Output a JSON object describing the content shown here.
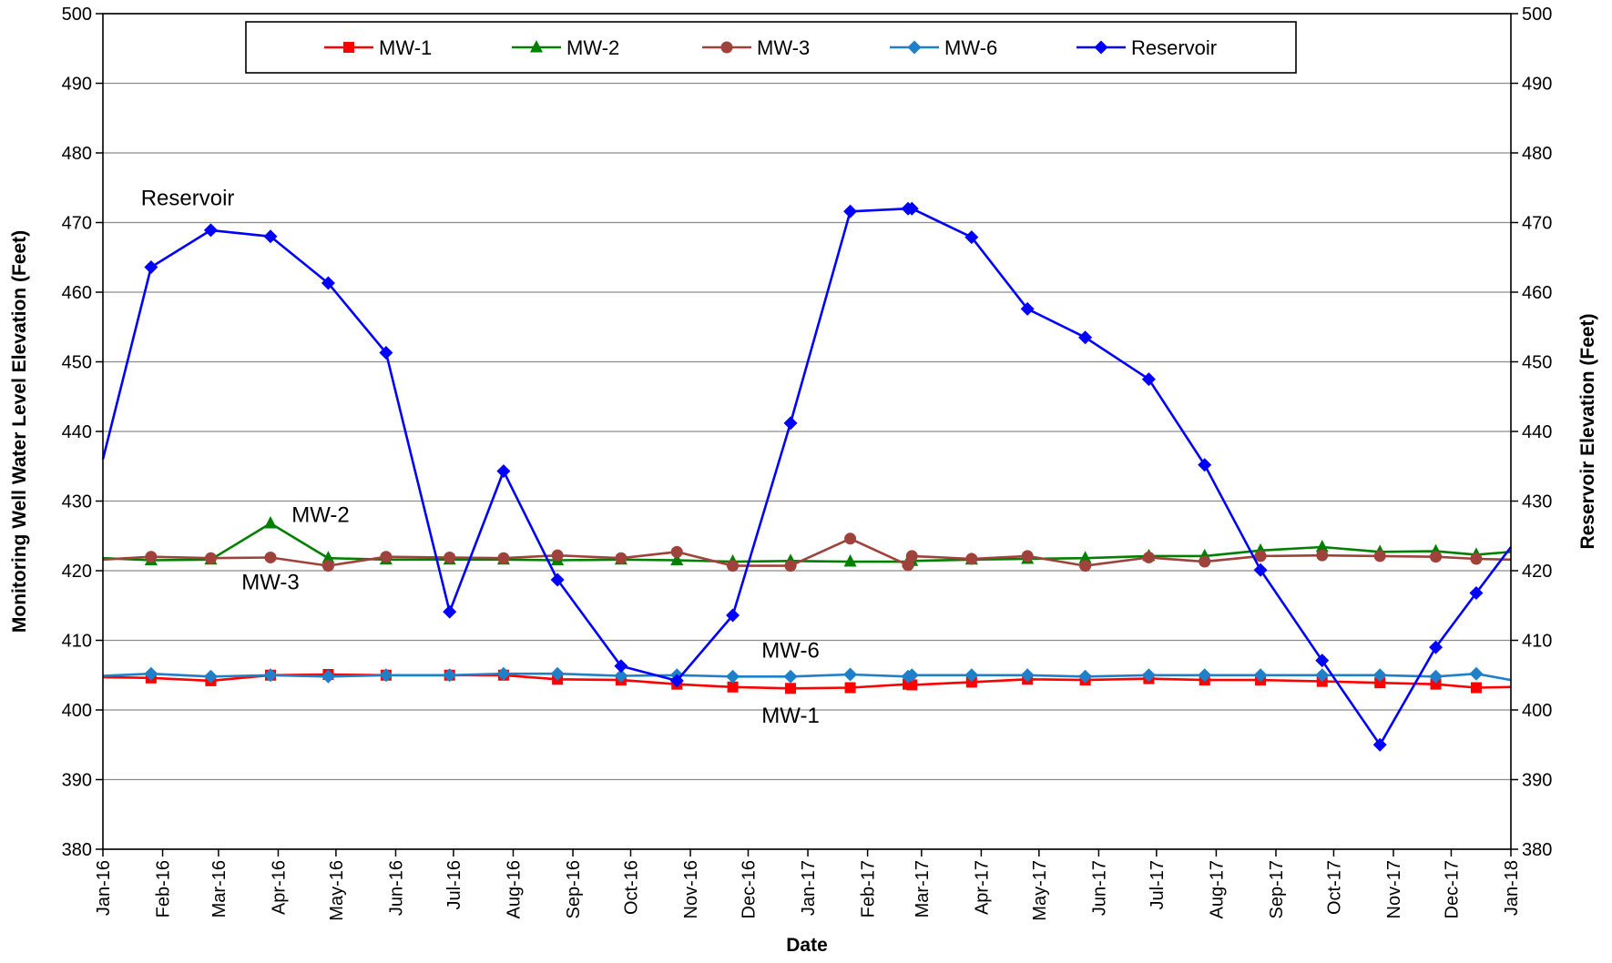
{
  "chart_data": {
    "type": "line",
    "xlabel": "Date",
    "ylabel_left": "Monitoring Well Water Level Elevation (Feet)",
    "ylabel_right": "Reservoir Elevation (Feet)",
    "ylim": [
      380,
      500
    ],
    "y_ticks": [
      "500",
      "490",
      "480",
      "470",
      "460",
      "450",
      "440",
      "430",
      "420",
      "410",
      "400",
      "390",
      "380"
    ],
    "y_tick_values": [
      500,
      490,
      480,
      470,
      460,
      450,
      440,
      430,
      420,
      410,
      400,
      390,
      380
    ],
    "x_range": [
      "2016-01-01",
      "2018-01-01"
    ],
    "x_tick_dates": [
      "2016-01-01",
      "2016-02-01",
      "2016-03-01",
      "2016-04-01",
      "2016-05-01",
      "2016-06-01",
      "2016-07-01",
      "2016-08-01",
      "2016-09-01",
      "2016-10-01",
      "2016-11-01",
      "2016-12-01",
      "2017-01-01",
      "2017-02-01",
      "2017-03-01",
      "2017-04-01",
      "2017-05-01",
      "2017-06-01",
      "2017-07-01",
      "2017-08-01",
      "2017-09-01",
      "2017-10-01",
      "2017-11-01",
      "2017-12-01",
      "2018-01-01"
    ],
    "x_tick_labels": [
      "Jan-16",
      "Feb-16",
      "Mar-16",
      "Apr-16",
      "May-16",
      "Jun-16",
      "Jul-16",
      "Aug-16",
      "Sep-16",
      "Oct-16",
      "Nov-16",
      "Dec-16",
      "Jan-17",
      "Feb-17",
      "Mar-17",
      "Apr-17",
      "May-17",
      "Jun-17",
      "Jul-17",
      "Aug-17",
      "Sep-17",
      "Oct-17",
      "Nov-17",
      "Dec-17",
      "Jan-18"
    ],
    "grid": "horizontal",
    "legend_position": "top",
    "series": [
      {
        "name": "MW-1",
        "color": "#ff0000",
        "marker": "square",
        "points": [
          [
            "2016-01-01",
            404.7
          ],
          [
            "2016-01-26",
            404.6
          ],
          [
            "2016-02-26",
            404.2
          ],
          [
            "2016-03-28",
            405.0
          ],
          [
            "2016-04-27",
            405.1
          ],
          [
            "2016-05-27",
            405.0
          ],
          [
            "2016-06-29",
            405.0
          ],
          [
            "2016-07-27",
            405.0
          ],
          [
            "2016-08-24",
            404.4
          ],
          [
            "2016-09-26",
            404.3
          ],
          [
            "2016-10-25",
            403.7
          ],
          [
            "2016-11-23",
            403.3
          ],
          [
            "2016-12-23",
            403.1
          ],
          [
            "2017-01-23",
            403.2
          ],
          [
            "2017-02-22",
            403.7
          ],
          [
            "2017-02-24",
            403.6
          ],
          [
            "2017-03-27",
            404.0
          ],
          [
            "2017-04-25",
            404.4
          ],
          [
            "2017-05-25",
            404.3
          ],
          [
            "2017-06-27",
            404.5
          ],
          [
            "2017-07-26",
            404.3
          ],
          [
            "2017-08-24",
            404.3
          ],
          [
            "2017-09-25",
            404.1
          ],
          [
            "2017-10-25",
            403.9
          ],
          [
            "2017-11-23",
            403.7
          ],
          [
            "2017-12-14",
            403.2
          ],
          [
            "2018-01-01",
            403.3
          ]
        ]
      },
      {
        "name": "MW-2",
        "color": "#008000",
        "marker": "triangle",
        "points": [
          [
            "2016-01-01",
            421.8
          ],
          [
            "2016-01-26",
            421.5
          ],
          [
            "2016-02-26",
            421.6
          ],
          [
            "2016-03-28",
            426.8
          ],
          [
            "2016-04-27",
            421.8
          ],
          [
            "2016-05-27",
            421.6
          ],
          [
            "2016-06-29",
            421.6
          ],
          [
            "2016-07-27",
            421.6
          ],
          [
            "2016-08-24",
            421.5
          ],
          [
            "2016-09-26",
            421.6
          ],
          [
            "2016-10-25",
            421.5
          ],
          [
            "2016-11-23",
            421.3
          ],
          [
            "2016-12-23",
            421.4
          ],
          [
            "2017-01-23",
            421.3
          ],
          [
            "2017-02-22",
            421.3
          ],
          [
            "2017-02-24",
            421.4
          ],
          [
            "2017-03-27",
            421.6
          ],
          [
            "2017-04-25",
            421.7
          ],
          [
            "2017-05-25",
            421.8
          ],
          [
            "2017-06-27",
            422.1
          ],
          [
            "2017-07-26",
            422.1
          ],
          [
            "2017-08-24",
            422.9
          ],
          [
            "2017-09-25",
            423.4
          ],
          [
            "2017-10-25",
            422.7
          ],
          [
            "2017-11-23",
            422.8
          ],
          [
            "2017-12-14",
            422.3
          ],
          [
            "2018-01-01",
            422.7
          ]
        ]
      },
      {
        "name": "MW-3",
        "color": "#a0423c",
        "marker": "circle",
        "points": [
          [
            "2016-01-01",
            421.6
          ],
          [
            "2016-01-26",
            422.0
          ],
          [
            "2016-02-26",
            421.8
          ],
          [
            "2016-03-28",
            421.9
          ],
          [
            "2016-04-27",
            420.7
          ],
          [
            "2016-05-27",
            422.0
          ],
          [
            "2016-06-29",
            421.9
          ],
          [
            "2016-07-27",
            421.8
          ],
          [
            "2016-08-24",
            422.2
          ],
          [
            "2016-09-26",
            421.8
          ],
          [
            "2016-10-25",
            422.7
          ],
          [
            "2016-11-23",
            420.7
          ],
          [
            "2016-12-23",
            420.7
          ],
          [
            "2017-01-23",
            424.6
          ],
          [
            "2017-02-22",
            420.8
          ],
          [
            "2017-02-24",
            422.1
          ],
          [
            "2017-03-27",
            421.7
          ],
          [
            "2017-04-25",
            422.1
          ],
          [
            "2017-05-25",
            420.7
          ],
          [
            "2017-06-27",
            421.9
          ],
          [
            "2017-07-26",
            421.3
          ],
          [
            "2017-08-24",
            422.1
          ],
          [
            "2017-09-25",
            422.2
          ],
          [
            "2017-10-25",
            422.1
          ],
          [
            "2017-11-23",
            422.0
          ],
          [
            "2017-12-14",
            421.7
          ],
          [
            "2018-01-01",
            421.6
          ]
        ]
      },
      {
        "name": "MW-6",
        "color": "#1f7fc8",
        "marker": "diamond",
        "points": [
          [
            "2016-01-01",
            404.9
          ],
          [
            "2016-01-26",
            405.2
          ],
          [
            "2016-02-26",
            404.8
          ],
          [
            "2016-03-28",
            405.0
          ],
          [
            "2016-04-27",
            404.8
          ],
          [
            "2016-05-27",
            405.0
          ],
          [
            "2016-06-29",
            405.0
          ],
          [
            "2016-07-27",
            405.2
          ],
          [
            "2016-08-24",
            405.2
          ],
          [
            "2016-09-26",
            404.9
          ],
          [
            "2016-10-25",
            405.0
          ],
          [
            "2016-11-23",
            404.8
          ],
          [
            "2016-12-23",
            404.8
          ],
          [
            "2017-01-23",
            405.1
          ],
          [
            "2017-02-22",
            404.8
          ],
          [
            "2017-02-24",
            405.0
          ],
          [
            "2017-03-27",
            405.0
          ],
          [
            "2017-04-25",
            405.0
          ],
          [
            "2017-05-25",
            404.8
          ],
          [
            "2017-06-27",
            405.0
          ],
          [
            "2017-07-26",
            405.0
          ],
          [
            "2017-08-24",
            405.0
          ],
          [
            "2017-09-25",
            405.0
          ],
          [
            "2017-10-25",
            405.0
          ],
          [
            "2017-11-23",
            404.8
          ],
          [
            "2017-12-14",
            405.2
          ],
          [
            "2018-01-01",
            404.3
          ]
        ]
      },
      {
        "name": "Reservoir",
        "color": "#0000ff",
        "marker": "diamond",
        "points": [
          [
            "2016-01-01",
            436.0
          ],
          [
            "2016-01-26",
            463.6
          ],
          [
            "2016-02-26",
            468.9
          ],
          [
            "2016-03-28",
            468.0
          ],
          [
            "2016-04-27",
            461.3
          ],
          [
            "2016-05-27",
            451.3
          ],
          [
            "2016-06-29",
            414.1
          ],
          [
            "2016-07-27",
            434.3
          ],
          [
            "2016-08-24",
            418.7
          ],
          [
            "2016-09-26",
            406.3
          ],
          [
            "2016-10-25",
            404.2
          ],
          [
            "2016-11-23",
            413.6
          ],
          [
            "2016-12-23",
            441.2
          ],
          [
            "2017-01-23",
            471.6
          ],
          [
            "2017-02-22",
            472.0
          ],
          [
            "2017-02-24",
            472.0
          ],
          [
            "2017-03-27",
            467.9
          ],
          [
            "2017-04-25",
            457.6
          ],
          [
            "2017-05-25",
            453.5
          ],
          [
            "2017-06-27",
            447.5
          ],
          [
            "2017-07-26",
            435.2
          ],
          [
            "2017-08-24",
            420.1
          ],
          [
            "2017-09-25",
            407.1
          ],
          [
            "2017-10-25",
            395.0
          ],
          [
            "2017-11-23",
            409.0
          ],
          [
            "2017-12-14",
            416.8
          ],
          [
            "2018-01-01",
            423.4
          ]
        ]
      }
    ],
    "annotations": [
      {
        "text": "Reservoir",
        "date": "2016-02-14",
        "value": 472.5
      },
      {
        "text": "MW-2",
        "date": "2016-04-23",
        "value": 427.0
      },
      {
        "text": "MW-3",
        "date": "2016-03-28",
        "value": 417.3
      },
      {
        "text": "MW-6",
        "date": "2016-12-23",
        "value": 407.5
      },
      {
        "text": "MW-1",
        "date": "2016-12-23",
        "value": 398.2
      }
    ]
  }
}
